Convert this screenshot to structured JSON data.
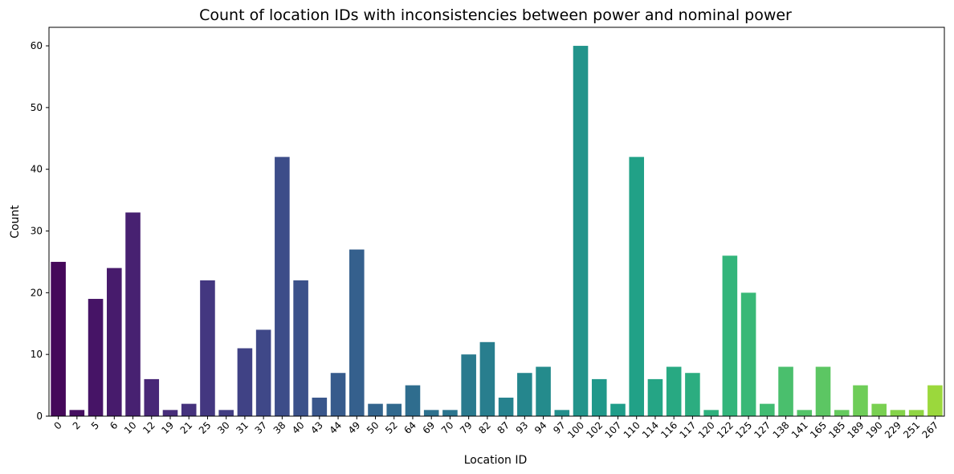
{
  "chart_data": {
    "type": "bar",
    "title": "Count of location IDs with inconsistencies between power and nominal power",
    "xlabel": "Location ID",
    "ylabel": "Count",
    "ylim": [
      0,
      63
    ],
    "yticks": [
      0,
      10,
      20,
      30,
      40,
      50,
      60
    ],
    "grid": false,
    "legend": "none",
    "palette": "viridis",
    "categories": [
      "0",
      "2",
      "5",
      "6",
      "10",
      "12",
      "19",
      "21",
      "25",
      "30",
      "31",
      "37",
      "38",
      "40",
      "43",
      "44",
      "49",
      "50",
      "52",
      "64",
      "69",
      "70",
      "79",
      "82",
      "87",
      "93",
      "94",
      "97",
      "100",
      "102",
      "107",
      "110",
      "114",
      "116",
      "117",
      "120",
      "122",
      "125",
      "127",
      "138",
      "141",
      "165",
      "185",
      "189",
      "190",
      "229",
      "251",
      "267"
    ],
    "values": [
      25,
      1,
      19,
      24,
      33,
      6,
      1,
      2,
      22,
      1,
      11,
      14,
      42,
      22,
      3,
      7,
      27,
      2,
      2,
      5,
      1,
      1,
      10,
      12,
      3,
      7,
      8,
      1,
      60,
      6,
      2,
      42,
      6,
      8,
      7,
      1,
      26,
      20,
      2,
      8,
      1,
      8,
      1,
      5,
      2,
      1,
      1,
      5
    ]
  }
}
